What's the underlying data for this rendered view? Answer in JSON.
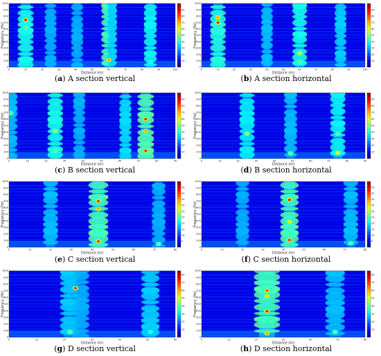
{
  "chart_data": [
    {
      "id": "a",
      "type": "heatmap",
      "caption_letter": "a",
      "caption_text": "A section vertical",
      "xlabel": "Distance (m)",
      "ylabel": "Frequency (Hz)",
      "xlim": [
        0,
        100
      ],
      "ylim": [
        0,
        1000
      ],
      "xticks": [
        0,
        10,
        20,
        30,
        40,
        50,
        60,
        70,
        80,
        90,
        100
      ],
      "yticks": [
        0,
        100,
        200,
        300,
        400,
        500,
        600,
        700,
        800,
        900,
        1000
      ],
      "colorbar_ticks": [
        10,
        20,
        30,
        40,
        50,
        60,
        70,
        80,
        90
      ],
      "clim": [
        0,
        100
      ],
      "bands": [
        {
          "x": 10,
          "w": 1.6,
          "s": 0.6
        },
        {
          "x": 25,
          "w": 1.2,
          "s": 0.3
        },
        {
          "x": 41,
          "w": 1.2,
          "s": 0.3
        },
        {
          "x": 60,
          "w": 1.5,
          "s": 0.75
        },
        {
          "x": 62,
          "w": 1.0,
          "s": 0.4
        },
        {
          "x": 85,
          "w": 1.3,
          "s": 0.55
        }
      ],
      "hotspots": [
        {
          "x": 10,
          "y": 740,
          "v": 100
        },
        {
          "x": 60,
          "y": 110,
          "v": 70
        },
        {
          "x": 10,
          "y": 620,
          "v": 45
        },
        {
          "x": 85,
          "y": 80,
          "v": 40
        }
      ]
    },
    {
      "id": "b",
      "type": "heatmap",
      "caption_letter": "b",
      "caption_text": "A section horizontal",
      "xlabel": "Distance (m)",
      "ylabel": "Frequency (Hz)",
      "xlim": [
        0,
        100
      ],
      "ylim": [
        0,
        1000
      ],
      "xticks": [
        0,
        10,
        20,
        30,
        40,
        50,
        60,
        70,
        80,
        90,
        100
      ],
      "yticks": [
        0,
        100,
        200,
        300,
        400,
        500,
        600,
        700,
        800,
        900,
        1000
      ],
      "colorbar_ticks": [
        10,
        20,
        30,
        40,
        50,
        60,
        70,
        80,
        90
      ],
      "clim": [
        0,
        100
      ],
      "bands": [
        {
          "x": 10,
          "w": 1.6,
          "s": 0.65
        },
        {
          "x": 40,
          "w": 1.2,
          "s": 0.35
        },
        {
          "x": 60,
          "w": 1.5,
          "s": 0.6
        },
        {
          "x": 85,
          "w": 1.2,
          "s": 0.4
        }
      ],
      "hotspots": [
        {
          "x": 10,
          "y": 700,
          "v": 100
        },
        {
          "x": 10,
          "y": 780,
          "v": 70
        },
        {
          "x": 60,
          "y": 220,
          "v": 55
        },
        {
          "x": 60,
          "y": 80,
          "v": 45
        }
      ]
    },
    {
      "id": "c",
      "type": "heatmap",
      "caption_letter": "c",
      "caption_text": "B section vertical",
      "xlabel": "Distance (m)",
      "ylabel": "Frequency (Hz)",
      "xlim": [
        0,
        90
      ],
      "ylim": [
        0,
        1000
      ],
      "xticks": [
        0,
        10,
        20,
        30,
        40,
        50,
        60,
        70,
        80,
        90
      ],
      "yticks": [
        0,
        100,
        200,
        300,
        400,
        500,
        600,
        700,
        800,
        900,
        1000
      ],
      "colorbar_ticks": [
        10,
        20,
        30,
        40,
        50,
        60,
        70,
        80,
        90
      ],
      "clim": [
        0,
        100
      ],
      "bands": [
        {
          "x": 1,
          "w": 1.2,
          "s": 0.35
        },
        {
          "x": 25,
          "w": 1.4,
          "s": 0.6
        },
        {
          "x": 38,
          "w": 1.1,
          "s": 0.3
        },
        {
          "x": 63,
          "w": 1.1,
          "s": 0.45
        },
        {
          "x": 74,
          "w": 1.5,
          "s": 0.8
        }
      ],
      "hotspots": [
        {
          "x": 74,
          "y": 600,
          "v": 95
        },
        {
          "x": 74,
          "y": 120,
          "v": 90
        },
        {
          "x": 74,
          "y": 420,
          "v": 70
        },
        {
          "x": 25,
          "y": 420,
          "v": 50
        },
        {
          "x": 25,
          "y": 120,
          "v": 45
        },
        {
          "x": 1,
          "y": 690,
          "v": 45
        }
      ]
    },
    {
      "id": "d",
      "type": "heatmap",
      "caption_letter": "d",
      "caption_text": "B section horizontal",
      "xlabel": "Distance (m)",
      "ylabel": "Frequency (Hz)",
      "xlim": [
        0,
        90
      ],
      "ylim": [
        0,
        1000
      ],
      "xticks": [
        0,
        10,
        20,
        30,
        40,
        50,
        60,
        70,
        80,
        90
      ],
      "yticks": [
        0,
        100,
        200,
        300,
        400,
        500,
        600,
        700,
        800,
        900,
        1000
      ],
      "colorbar_ticks": [
        10,
        20,
        30,
        40,
        50,
        60,
        70,
        80,
        90
      ],
      "clim": [
        0,
        100
      ],
      "bands": [
        {
          "x": 25,
          "w": 1.4,
          "s": 0.5
        },
        {
          "x": 49,
          "w": 1.2,
          "s": 0.35
        },
        {
          "x": 75,
          "w": 1.4,
          "s": 0.55
        }
      ],
      "hotspots": [
        {
          "x": 75,
          "y": 90,
          "v": 60
        },
        {
          "x": 25,
          "y": 380,
          "v": 50
        },
        {
          "x": 49,
          "y": 80,
          "v": 45
        },
        {
          "x": 75,
          "y": 380,
          "v": 45
        }
      ]
    },
    {
      "id": "e",
      "type": "heatmap",
      "caption_letter": "e",
      "caption_text": "C section vertical",
      "xlabel": "Distance (m)",
      "ylabel": "Frequency (Hz)",
      "xlim": [
        0,
        80
      ],
      "ylim": [
        0,
        1000
      ],
      "xticks": [
        0,
        10,
        20,
        30,
        40,
        50,
        60,
        70,
        80
      ],
      "yticks": [
        0,
        100,
        200,
        300,
        400,
        500,
        600,
        700,
        800,
        900,
        1000
      ],
      "colorbar_ticks": [
        5,
        10,
        15,
        20,
        25,
        30,
        35,
        40,
        45,
        50
      ],
      "clim": [
        0,
        55
      ],
      "bands": [
        {
          "x": 20,
          "w": 1.2,
          "s": 0.35
        },
        {
          "x": 43,
          "w": 1.6,
          "s": 0.75
        },
        {
          "x": 72,
          "w": 1.1,
          "s": 0.3
        }
      ],
      "hotspots": [
        {
          "x": 43,
          "y": 700,
          "v": 95
        },
        {
          "x": 43,
          "y": 90,
          "v": 95
        },
        {
          "x": 43,
          "y": 580,
          "v": 70
        },
        {
          "x": 72,
          "y": 50,
          "v": 45
        }
      ]
    },
    {
      "id": "f",
      "type": "heatmap",
      "caption_letter": "f",
      "caption_text": "C section horizontal",
      "xlabel": "Distance (m)",
      "ylabel": "Frequency (Hz)",
      "xlim": [
        0,
        80
      ],
      "ylim": [
        0,
        1000
      ],
      "xticks": [
        0,
        10,
        20,
        30,
        40,
        50,
        60,
        70,
        80
      ],
      "yticks": [
        0,
        100,
        200,
        300,
        400,
        500,
        600,
        700,
        800,
        900,
        1000
      ],
      "colorbar_ticks": [
        5,
        10,
        15,
        20,
        25,
        30,
        35,
        40,
        45,
        50
      ],
      "clim": [
        0,
        55
      ],
      "bands": [
        {
          "x": 20,
          "w": 1.1,
          "s": 0.3
        },
        {
          "x": 43,
          "w": 1.5,
          "s": 0.75
        },
        {
          "x": 73,
          "w": 1.2,
          "s": 0.35
        }
      ],
      "hotspots": [
        {
          "x": 43,
          "y": 720,
          "v": 100
        },
        {
          "x": 43,
          "y": 110,
          "v": 85
        },
        {
          "x": 43,
          "y": 390,
          "v": 60
        },
        {
          "x": 73,
          "y": 60,
          "v": 45
        }
      ]
    },
    {
      "id": "g",
      "type": "heatmap",
      "caption_letter": "g",
      "caption_text": "D section vertical",
      "xlabel": "Distance (m)",
      "ylabel": "Frequency (Hz)",
      "xlim": [
        0,
        60
      ],
      "ylim": [
        0,
        1000
      ],
      "xticks": [
        0,
        10,
        20,
        30,
        40,
        50,
        60
      ],
      "yticks": [
        0,
        100,
        200,
        300,
        400,
        500,
        600,
        700,
        800,
        900,
        1000
      ],
      "colorbar_ticks": [
        10,
        20,
        30,
        40,
        50,
        60,
        70,
        80
      ],
      "clim": [
        0,
        85
      ],
      "bands": [
        {
          "x": 22,
          "w": 1.2,
          "s": 0.4
        },
        {
          "x": 26,
          "w": 1.0,
          "s": 0.3
        },
        {
          "x": 51,
          "w": 1.1,
          "s": 0.4
        }
      ],
      "hotspots": [
        {
          "x": 24,
          "y": 740,
          "v": 100
        },
        {
          "x": 22,
          "y": 80,
          "v": 45
        },
        {
          "x": 51,
          "y": 80,
          "v": 40
        }
      ]
    },
    {
      "id": "h",
      "type": "heatmap",
      "caption_letter": "h",
      "caption_text": "D section horizontal",
      "xlabel": "Distance (m)",
      "ylabel": "Frequency (Hz)",
      "xlim": [
        0,
        60
      ],
      "ylim": [
        0,
        1000
      ],
      "xticks": [
        0,
        10,
        20,
        30,
        40,
        50,
        60
      ],
      "yticks": [
        0,
        100,
        200,
        300,
        400,
        500,
        600,
        700,
        800,
        900,
        1000
      ],
      "colorbar_ticks": [
        10,
        20,
        30,
        40,
        50,
        60,
        70,
        80
      ],
      "clim": [
        0,
        85
      ],
      "bands": [
        {
          "x": 24,
          "w": 1.6,
          "s": 0.75
        },
        {
          "x": 49,
          "w": 1.2,
          "s": 0.35
        }
      ],
      "hotspots": [
        {
          "x": 24,
          "y": 390,
          "v": 100
        },
        {
          "x": 24,
          "y": 700,
          "v": 80
        },
        {
          "x": 24,
          "y": 620,
          "v": 65
        },
        {
          "x": 24,
          "y": 60,
          "v": 70
        },
        {
          "x": 49,
          "y": 80,
          "v": 45
        }
      ]
    }
  ]
}
